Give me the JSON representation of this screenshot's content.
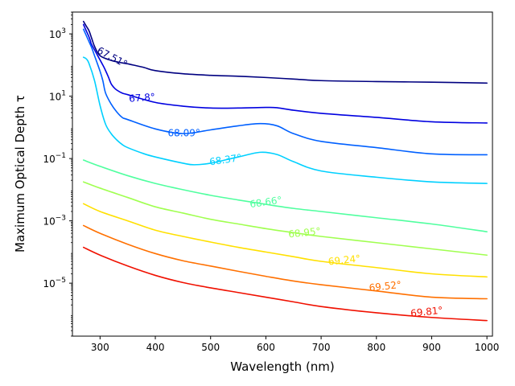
{
  "chart_data": {
    "type": "line",
    "title": "",
    "xlabel": "Wavelength (nm)",
    "ylabel": "Maximum Optical Depth τ",
    "xlim": [
      250,
      1010
    ],
    "ylim_log10": [
      -6.7,
      3.7
    ],
    "y_scale": "log",
    "x_ticks": [
      {
        "value": 300,
        "label": "300"
      },
      {
        "value": 400,
        "label": "400"
      },
      {
        "value": 500,
        "label": "500"
      },
      {
        "value": 600,
        "label": "600"
      },
      {
        "value": 700,
        "label": "700"
      },
      {
        "value": 800,
        "label": "800"
      },
      {
        "value": 900,
        "label": "900"
      },
      {
        "value": 1000,
        "label": "1000"
      }
    ],
    "y_ticks": [
      {
        "log10": 3,
        "base": "10",
        "exp": "3"
      },
      {
        "log10": 1,
        "base": "10",
        "exp": "1"
      },
      {
        "log10": -1,
        "base": "10",
        "exp": "−1"
      },
      {
        "log10": -3,
        "base": "10",
        "exp": "−3"
      },
      {
        "log10": -5,
        "base": "10",
        "exp": "−5"
      }
    ],
    "series_note": "y values are log10(tau)",
    "series": [
      {
        "name": "67.51°",
        "label": "67.51°",
        "color": "#000080",
        "x": [
          270,
          275,
          280,
          285,
          290,
          300,
          320,
          340,
          350,
          360,
          380,
          400,
          450,
          500,
          550,
          600,
          650,
          700,
          800,
          900,
          1000
        ],
        "y": [
          3.4,
          3.25,
          3.1,
          2.85,
          2.6,
          2.3,
          2.15,
          2.07,
          2.04,
          2.0,
          1.92,
          1.82,
          1.72,
          1.67,
          1.64,
          1.6,
          1.55,
          1.5,
          1.47,
          1.45,
          1.42
        ],
        "label_at": {
          "x": 322,
          "y": 2.25,
          "angle": 28
        }
      },
      {
        "name": "67.8°",
        "label": "67.8°",
        "color": "#0000e0",
        "x": [
          270,
          275,
          280,
          283,
          285,
          305,
          310,
          315,
          320,
          325,
          330,
          340,
          350,
          400,
          450,
          500,
          550,
          600,
          620,
          650,
          700,
          800,
          900,
          1000
        ],
        "y": [
          3.3,
          3.1,
          2.9,
          2.75,
          2.65,
          2.0,
          1.82,
          1.62,
          1.4,
          1.28,
          1.2,
          1.1,
          1.05,
          0.8,
          0.68,
          0.62,
          0.62,
          0.64,
          0.63,
          0.55,
          0.45,
          0.32,
          0.18,
          0.14
        ],
        "label_at": {
          "x": 376,
          "y": 0.95,
          "angle": -4
        }
      },
      {
        "name": "68.09°",
        "label": "68.09°",
        "color": "#0060ff",
        "x": [
          270,
          275,
          280,
          285,
          290,
          300,
          305,
          310,
          320,
          330,
          340,
          350,
          400,
          450,
          500,
          550,
          590,
          620,
          650,
          700,
          800,
          900,
          1000
        ],
        "y": [
          3.15,
          2.95,
          2.75,
          2.55,
          2.3,
          1.8,
          1.5,
          1.1,
          0.75,
          0.5,
          0.32,
          0.25,
          -0.05,
          -0.2,
          -0.08,
          0.05,
          0.12,
          0.05,
          -0.2,
          -0.45,
          -0.65,
          -0.85,
          -0.88
        ],
        "label_at": {
          "x": 452,
          "y": -0.18,
          "angle": 0
        }
      },
      {
        "name": "68.37°",
        "label": "68.37°",
        "color": "#00d0ff",
        "x": [
          270,
          275,
          280,
          290,
          300,
          310,
          320,
          330,
          340,
          350,
          380,
          400,
          450,
          470,
          500,
          550,
          590,
          620,
          650,
          700,
          800,
          900,
          1000
        ],
        "y": [
          2.25,
          2.2,
          2.05,
          1.5,
          0.7,
          0.1,
          -0.2,
          -0.4,
          -0.55,
          -0.65,
          -0.85,
          -0.95,
          -1.15,
          -1.2,
          -1.15,
          -0.95,
          -0.8,
          -0.87,
          -1.1,
          -1.4,
          -1.6,
          -1.75,
          -1.8
        ],
        "label_at": {
          "x": 527,
          "y": -1.04,
          "angle": -8
        }
      },
      {
        "name": "68.66°",
        "label": "68.66°",
        "color": "#50ff9f",
        "x": [
          270,
          300,
          350,
          400,
          450,
          500,
          550,
          600,
          650,
          700,
          800,
          900,
          1000
        ],
        "y": [
          -1.05,
          -1.25,
          -1.55,
          -1.8,
          -2.0,
          -2.18,
          -2.33,
          -2.47,
          -2.6,
          -2.7,
          -2.9,
          -3.1,
          -3.35
        ],
        "label_at": {
          "x": 600,
          "y": -2.4,
          "angle": -8
        }
      },
      {
        "name": "68.95°",
        "label": "68.95°",
        "color": "#a0ff50",
        "x": [
          270,
          300,
          350,
          400,
          450,
          500,
          550,
          600,
          650,
          700,
          800,
          900,
          1000
        ],
        "y": [
          -1.75,
          -1.95,
          -2.25,
          -2.55,
          -2.75,
          -2.95,
          -3.1,
          -3.25,
          -3.38,
          -3.5,
          -3.7,
          -3.9,
          -4.1
        ],
        "label_at": {
          "x": 670,
          "y": -3.38,
          "angle": -6
        }
      },
      {
        "name": "69.24°",
        "label": "69.24°",
        "color": "#ffe000",
        "x": [
          270,
          300,
          350,
          400,
          450,
          500,
          550,
          600,
          650,
          700,
          800,
          900,
          1000
        ],
        "y": [
          -2.45,
          -2.7,
          -3.0,
          -3.3,
          -3.5,
          -3.68,
          -3.85,
          -4.0,
          -4.15,
          -4.3,
          -4.5,
          -4.7,
          -4.8
        ],
        "label_at": {
          "x": 742,
          "y": -4.26,
          "angle": -6
        }
      },
      {
        "name": "69.52°",
        "label": "69.52°",
        "color": "#ff7000",
        "x": [
          270,
          300,
          350,
          400,
          450,
          500,
          550,
          600,
          650,
          700,
          800,
          900,
          1000
        ],
        "y": [
          -3.15,
          -3.4,
          -3.75,
          -4.05,
          -4.28,
          -4.45,
          -4.62,
          -4.78,
          -4.93,
          -5.05,
          -5.25,
          -5.45,
          -5.5
        ],
        "label_at": {
          "x": 816,
          "y": -5.1,
          "angle": -6
        }
      },
      {
        "name": "69.81°",
        "label": "69.81°",
        "color": "#f01000",
        "x": [
          270,
          300,
          350,
          400,
          450,
          500,
          550,
          600,
          650,
          700,
          800,
          900,
          1000
        ],
        "y": [
          -3.85,
          -4.1,
          -4.45,
          -4.75,
          -4.98,
          -5.15,
          -5.3,
          -5.45,
          -5.6,
          -5.75,
          -5.95,
          -6.1,
          -6.2
        ],
        "label_at": {
          "x": 891,
          "y": -5.92,
          "angle": -6
        }
      }
    ]
  }
}
